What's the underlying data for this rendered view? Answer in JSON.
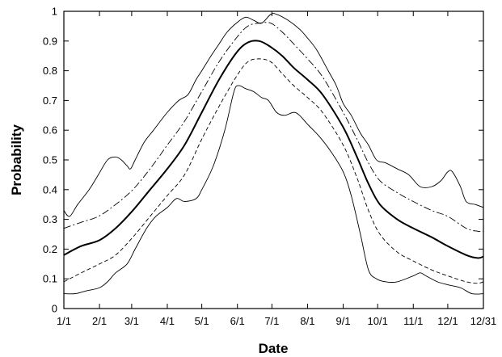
{
  "chart_data": {
    "type": "line",
    "xlabel": "Date",
    "ylabel": "Probability",
    "xlim": [
      0,
      365
    ],
    "ylim": [
      0,
      1
    ],
    "grid": false,
    "x_ticks": [
      {
        "label": "1/1",
        "value": 0
      },
      {
        "label": "2/1",
        "value": 31
      },
      {
        "label": "3/1",
        "value": 59
      },
      {
        "label": "4/1",
        "value": 90
      },
      {
        "label": "5/1",
        "value": 120
      },
      {
        "label": "6/1",
        "value": 151
      },
      {
        "label": "7/1",
        "value": 181
      },
      {
        "label": "8/1",
        "value": 212
      },
      {
        "label": "9/1",
        "value": 243
      },
      {
        "label": "10/1",
        "value": 273
      },
      {
        "label": "11/1",
        "value": 304
      },
      {
        "label": "12/1",
        "value": 334
      },
      {
        "label": "12/31",
        "value": 365
      }
    ],
    "y_ticks": [
      {
        "label": "0",
        "value": 0
      },
      {
        "label": "0.1",
        "value": 0.1
      },
      {
        "label": "0.2",
        "value": 0.2
      },
      {
        "label": "0.3",
        "value": 0.3
      },
      {
        "label": "0.4",
        "value": 0.4
      },
      {
        "label": "0.5",
        "value": 0.5
      },
      {
        "label": "0.6",
        "value": 0.6
      },
      {
        "label": "0.7",
        "value": 0.7
      },
      {
        "label": "0.8",
        "value": 0.8
      },
      {
        "label": "0.9",
        "value": 0.9
      },
      {
        "label": "1",
        "value": 1
      }
    ],
    "series": [
      {
        "style": "solid-thin",
        "color": "#000000",
        "points": [
          [
            0,
            0.33
          ],
          [
            5,
            0.31
          ],
          [
            12,
            0.35
          ],
          [
            22,
            0.4
          ],
          [
            30,
            0.45
          ],
          [
            38,
            0.5
          ],
          [
            45,
            0.51
          ],
          [
            50,
            0.5
          ],
          [
            55,
            0.48
          ],
          [
            58,
            0.47
          ],
          [
            62,
            0.5
          ],
          [
            70,
            0.56
          ],
          [
            78,
            0.6
          ],
          [
            90,
            0.66
          ],
          [
            100,
            0.7
          ],
          [
            108,
            0.72
          ],
          [
            115,
            0.77
          ],
          [
            120,
            0.8
          ],
          [
            128,
            0.85
          ],
          [
            135,
            0.89
          ],
          [
            142,
            0.93
          ],
          [
            150,
            0.96
          ],
          [
            158,
            0.98
          ],
          [
            165,
            0.97
          ],
          [
            172,
            0.96
          ],
          [
            180,
            0.99
          ],
          [
            185,
            0.99
          ],
          [
            195,
            0.97
          ],
          [
            205,
            0.94
          ],
          [
            212,
            0.91
          ],
          [
            220,
            0.87
          ],
          [
            230,
            0.8
          ],
          [
            237,
            0.75
          ],
          [
            243,
            0.69
          ],
          [
            250,
            0.65
          ],
          [
            258,
            0.59
          ],
          [
            265,
            0.55
          ],
          [
            272,
            0.5
          ],
          [
            280,
            0.49
          ],
          [
            290,
            0.47
          ],
          [
            300,
            0.45
          ],
          [
            310,
            0.41
          ],
          [
            320,
            0.41
          ],
          [
            328,
            0.43
          ],
          [
            334,
            0.46
          ],
          [
            338,
            0.46
          ],
          [
            345,
            0.41
          ],
          [
            350,
            0.36
          ],
          [
            358,
            0.35
          ],
          [
            365,
            0.34
          ]
        ]
      },
      {
        "style": "dash-dot",
        "color": "#000000",
        "points": [
          [
            0,
            0.27
          ],
          [
            15,
            0.29
          ],
          [
            30,
            0.31
          ],
          [
            45,
            0.35
          ],
          [
            60,
            0.4
          ],
          [
            75,
            0.47
          ],
          [
            90,
            0.55
          ],
          [
            105,
            0.63
          ],
          [
            120,
            0.73
          ],
          [
            135,
            0.83
          ],
          [
            150,
            0.91
          ],
          [
            160,
            0.95
          ],
          [
            170,
            0.96
          ],
          [
            180,
            0.96
          ],
          [
            190,
            0.93
          ],
          [
            200,
            0.89
          ],
          [
            212,
            0.84
          ],
          [
            225,
            0.78
          ],
          [
            243,
            0.66
          ],
          [
            255,
            0.57
          ],
          [
            265,
            0.49
          ],
          [
            275,
            0.43
          ],
          [
            290,
            0.39
          ],
          [
            304,
            0.36
          ],
          [
            320,
            0.33
          ],
          [
            334,
            0.31
          ],
          [
            350,
            0.27
          ],
          [
            360,
            0.26
          ],
          [
            365,
            0.26
          ]
        ]
      },
      {
        "style": "solid-thick",
        "color": "#000000",
        "points": [
          [
            0,
            0.18
          ],
          [
            15,
            0.21
          ],
          [
            31,
            0.23
          ],
          [
            45,
            0.27
          ],
          [
            60,
            0.33
          ],
          [
            75,
            0.4
          ],
          [
            90,
            0.47
          ],
          [
            105,
            0.55
          ],
          [
            120,
            0.66
          ],
          [
            135,
            0.77
          ],
          [
            150,
            0.86
          ],
          [
            160,
            0.895
          ],
          [
            170,
            0.9
          ],
          [
            180,
            0.88
          ],
          [
            190,
            0.85
          ],
          [
            200,
            0.81
          ],
          [
            212,
            0.77
          ],
          [
            225,
            0.72
          ],
          [
            243,
            0.61
          ],
          [
            255,
            0.51
          ],
          [
            265,
            0.42
          ],
          [
            275,
            0.35
          ],
          [
            290,
            0.3
          ],
          [
            304,
            0.27
          ],
          [
            320,
            0.24
          ],
          [
            334,
            0.21
          ],
          [
            350,
            0.18
          ],
          [
            360,
            0.17
          ],
          [
            365,
            0.175
          ]
        ]
      },
      {
        "style": "dashed",
        "color": "#000000",
        "points": [
          [
            0,
            0.09
          ],
          [
            15,
            0.12
          ],
          [
            31,
            0.15
          ],
          [
            45,
            0.18
          ],
          [
            60,
            0.24
          ],
          [
            75,
            0.31
          ],
          [
            90,
            0.38
          ],
          [
            105,
            0.45
          ],
          [
            120,
            0.57
          ],
          [
            135,
            0.68
          ],
          [
            150,
            0.78
          ],
          [
            160,
            0.83
          ],
          [
            170,
            0.84
          ],
          [
            180,
            0.83
          ],
          [
            190,
            0.79
          ],
          [
            200,
            0.75
          ],
          [
            212,
            0.71
          ],
          [
            225,
            0.66
          ],
          [
            243,
            0.55
          ],
          [
            255,
            0.44
          ],
          [
            265,
            0.33
          ],
          [
            275,
            0.25
          ],
          [
            290,
            0.19
          ],
          [
            304,
            0.16
          ],
          [
            320,
            0.13
          ],
          [
            334,
            0.11
          ],
          [
            350,
            0.09
          ],
          [
            360,
            0.085
          ],
          [
            365,
            0.09
          ]
        ]
      },
      {
        "style": "solid-thin",
        "color": "#000000",
        "points": [
          [
            0,
            0.05
          ],
          [
            10,
            0.05
          ],
          [
            20,
            0.06
          ],
          [
            31,
            0.07
          ],
          [
            38,
            0.09
          ],
          [
            45,
            0.12
          ],
          [
            55,
            0.15
          ],
          [
            62,
            0.2
          ],
          [
            72,
            0.27
          ],
          [
            80,
            0.31
          ],
          [
            90,
            0.34
          ],
          [
            98,
            0.37
          ],
          [
            105,
            0.36
          ],
          [
            115,
            0.37
          ],
          [
            120,
            0.4
          ],
          [
            130,
            0.48
          ],
          [
            140,
            0.6
          ],
          [
            148,
            0.73
          ],
          [
            152,
            0.75
          ],
          [
            158,
            0.74
          ],
          [
            165,
            0.73
          ],
          [
            172,
            0.71
          ],
          [
            178,
            0.7
          ],
          [
            185,
            0.66
          ],
          [
            192,
            0.65
          ],
          [
            200,
            0.66
          ],
          [
            205,
            0.65
          ],
          [
            212,
            0.62
          ],
          [
            222,
            0.58
          ],
          [
            232,
            0.53
          ],
          [
            243,
            0.46
          ],
          [
            250,
            0.38
          ],
          [
            258,
            0.25
          ],
          [
            265,
            0.13
          ],
          [
            272,
            0.1
          ],
          [
            280,
            0.09
          ],
          [
            290,
            0.09
          ],
          [
            304,
            0.11
          ],
          [
            310,
            0.12
          ],
          [
            315,
            0.11
          ],
          [
            325,
            0.09
          ],
          [
            334,
            0.08
          ],
          [
            345,
            0.07
          ],
          [
            355,
            0.05
          ],
          [
            365,
            0.05
          ]
        ]
      }
    ]
  }
}
